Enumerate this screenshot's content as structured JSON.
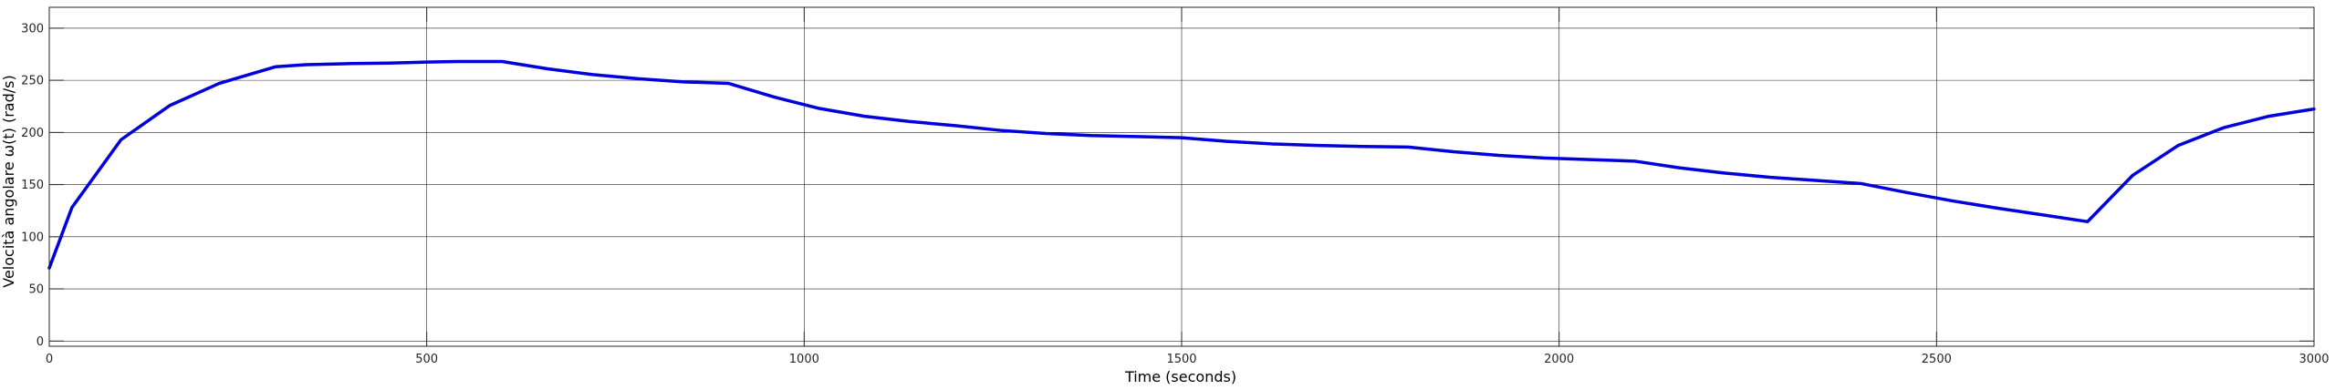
{
  "chart_data": {
    "type": "line",
    "title": "",
    "xlabel": "Time (seconds)",
    "ylabel": "Velocità angolare ω(t) (rad/s)",
    "xlim": [
      0,
      3000
    ],
    "ylim": [
      -5,
      320
    ],
    "xticks": [
      0,
      500,
      1000,
      1500,
      2000,
      2500,
      3000
    ],
    "yticks": [
      0,
      50,
      100,
      150,
      200,
      250,
      300
    ],
    "grid": true,
    "series": [
      {
        "color": "#0000dd",
        "x": [
          0,
          30,
          95,
          160,
          225,
          300,
          340,
          400,
          450,
          500,
          540,
          600,
          660,
          720,
          780,
          840,
          900,
          960,
          1020,
          1080,
          1140,
          1200,
          1260,
          1320,
          1380,
          1440,
          1500,
          1560,
          1620,
          1680,
          1740,
          1800,
          1860,
          1920,
          1980,
          2040,
          2100,
          2160,
          2220,
          2280,
          2340,
          2400,
          2460,
          2520,
          2580,
          2640,
          2700,
          2760,
          2820,
          2880,
          2940,
          3000
        ],
        "y": [
          70,
          128,
          193,
          226,
          247,
          263,
          265,
          266,
          266.5,
          267.5,
          268,
          268,
          261,
          255.5,
          251.5,
          248.5,
          247,
          234,
          223,
          215.5,
          210.5,
          206.5,
          202,
          199,
          197,
          196,
          195,
          191.5,
          189,
          187.5,
          186.5,
          186,
          181.5,
          178,
          175.5,
          174,
          172.5,
          166,
          161,
          157,
          154,
          151,
          142.5,
          134.5,
          127.5,
          121,
          114.5,
          159,
          187.5,
          204.5,
          215.5,
          222.5
        ]
      }
    ]
  }
}
